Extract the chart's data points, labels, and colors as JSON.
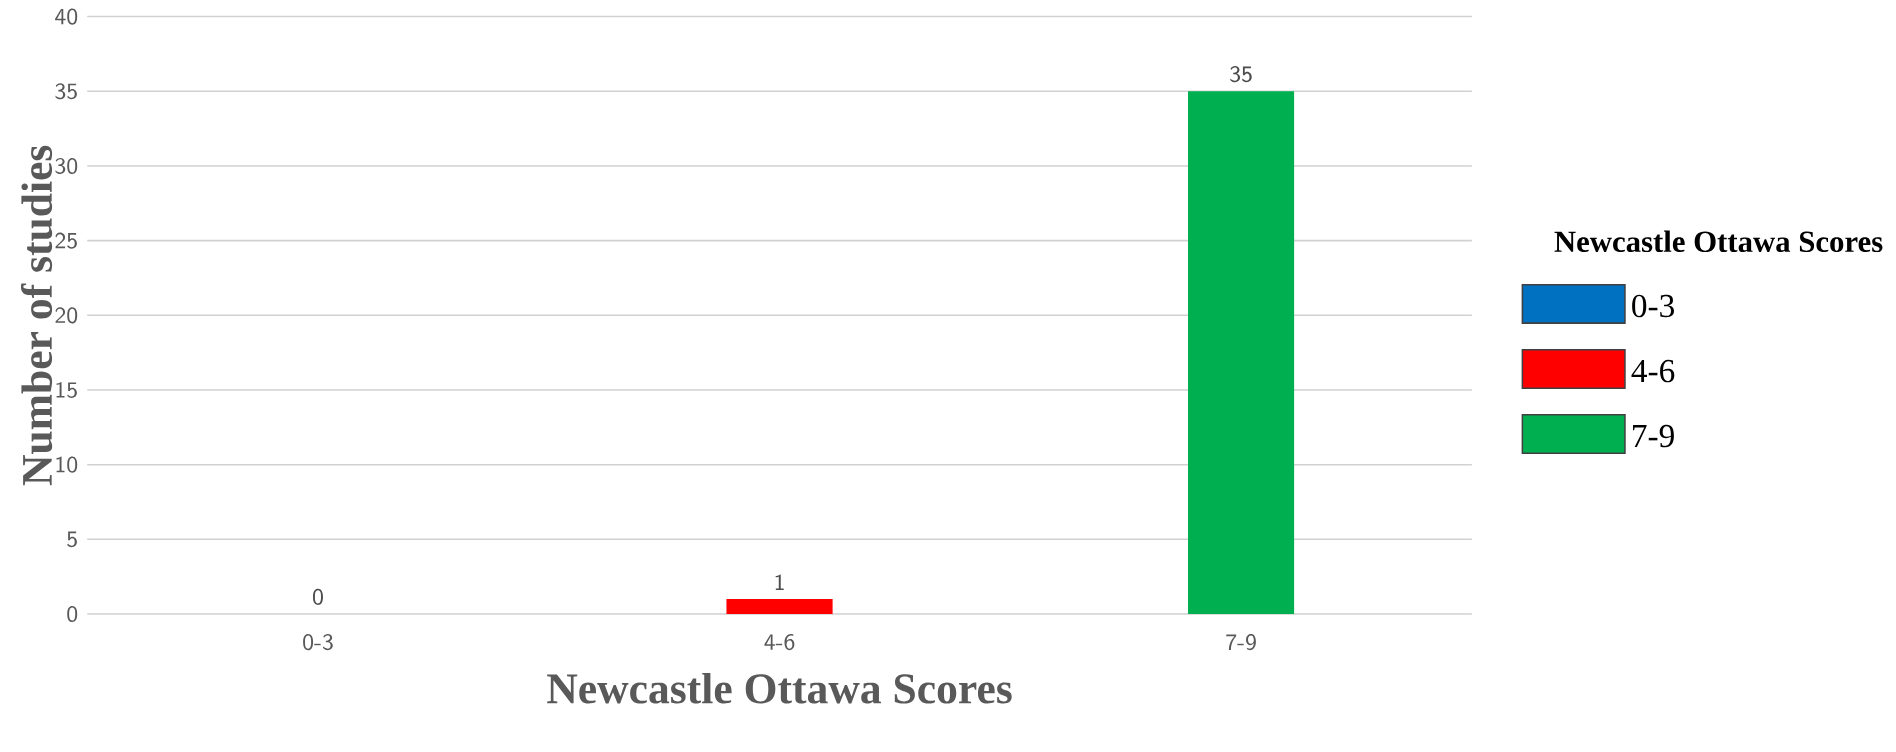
{
  "chart_data": {
    "type": "bar",
    "xlabel": "Newcastle Ottawa Scores",
    "ylabel": "Number of studies",
    "legend_title": "Newcastle Ottawa Scores",
    "categories": [
      "0-3",
      "4-6",
      "7-9"
    ],
    "series": [
      {
        "name": "0-3",
        "color": "#0070c0",
        "values": [
          0,
          null,
          null
        ]
      },
      {
        "name": "4-6",
        "color": "#ff0000",
        "values": [
          null,
          1,
          null
        ]
      },
      {
        "name": "7-9",
        "color": "#00b050",
        "values": [
          null,
          null,
          35
        ]
      }
    ],
    "ylim": [
      0,
      40
    ],
    "yticks": [
      0,
      5,
      10,
      15,
      20,
      25,
      30,
      35,
      40
    ],
    "grid": "y",
    "legend": "right",
    "data_labels": true
  }
}
